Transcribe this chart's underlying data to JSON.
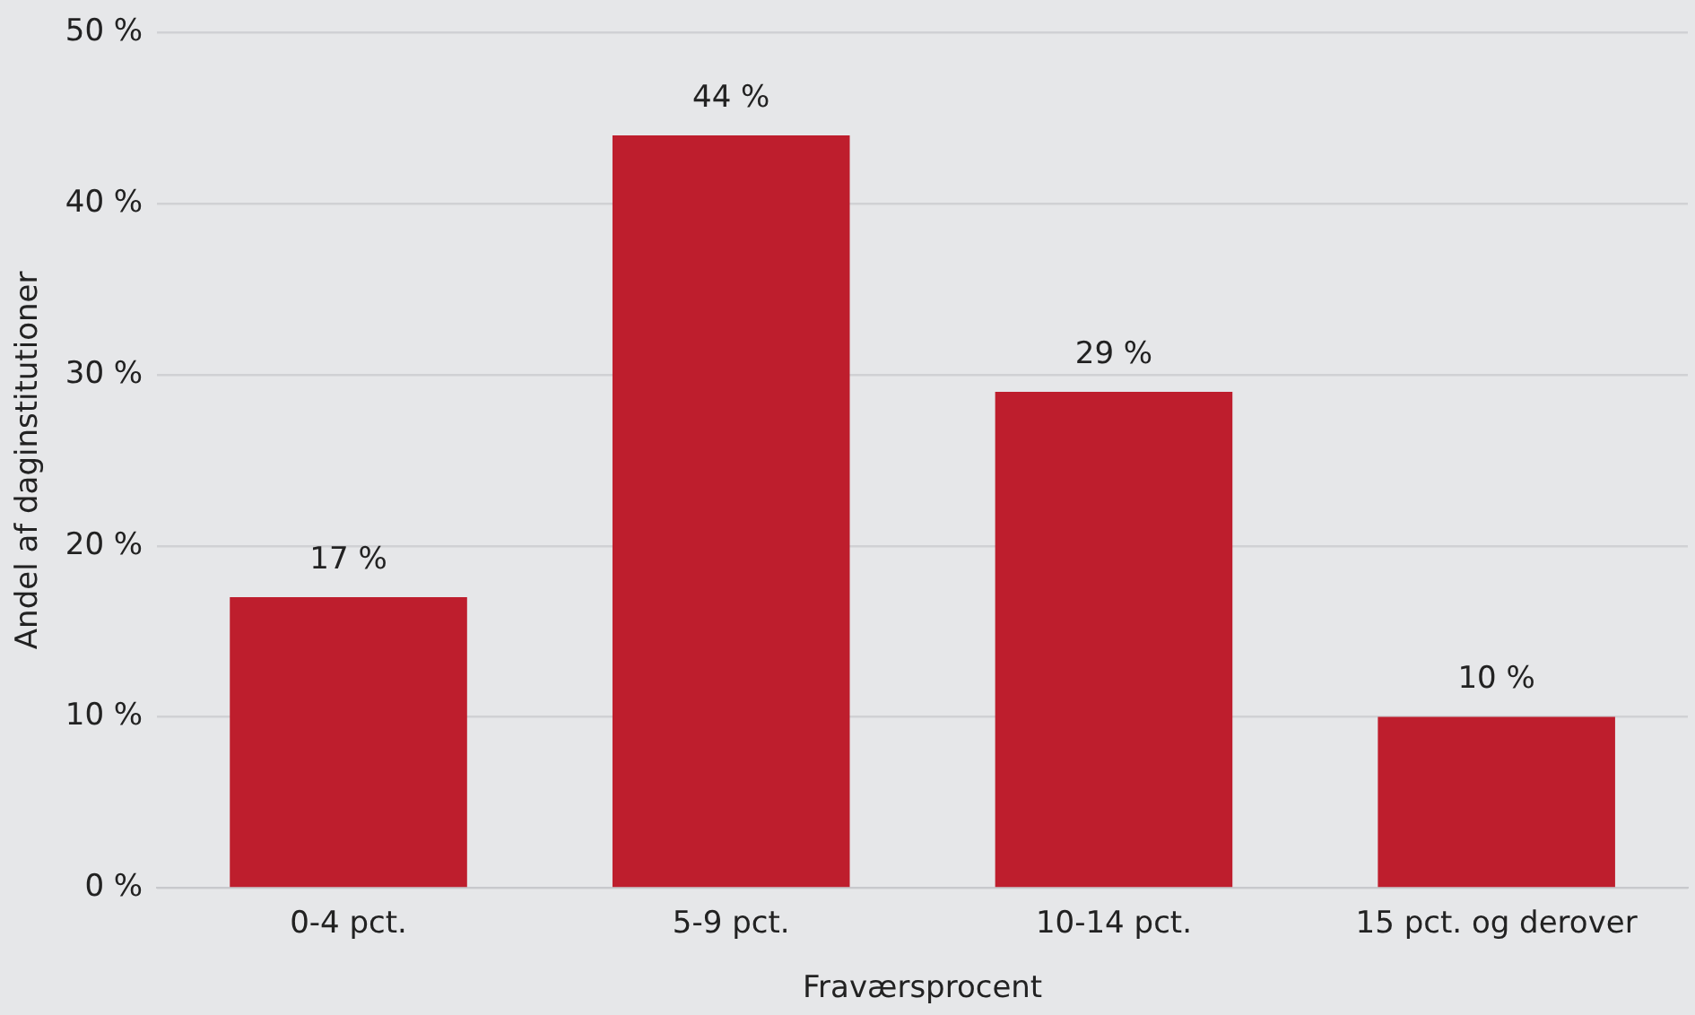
{
  "chart_data": {
    "type": "bar",
    "xlabel": "Fraværsprocent",
    "ylabel": "Andel af daginstitutioner",
    "categories": [
      "0-4 pct.",
      "5-9 pct.",
      "10-14 pct.",
      "15 pct. og derover"
    ],
    "values": [
      17,
      44,
      29,
      10
    ],
    "value_labels": [
      "17 %",
      "44 %",
      "29 %",
      "10 %"
    ],
    "color": "#be1e2d",
    "ylim": [
      0,
      50
    ],
    "yticks": [
      {
        "value": 0,
        "label": "0 %"
      },
      {
        "value": 10,
        "label": "10 %"
      },
      {
        "value": 20,
        "label": "20 %"
      },
      {
        "value": 30,
        "label": "30 %"
      },
      {
        "value": 40,
        "label": "40 %"
      },
      {
        "value": 50,
        "label": "50 %"
      }
    ],
    "grid": "y",
    "legend": false
  }
}
